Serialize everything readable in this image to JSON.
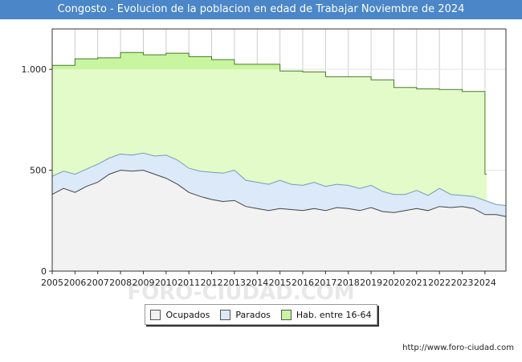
{
  "page": {
    "title": "Congosto - Evolucion de la poblacion en edad de Trabajar Noviembre de 2024",
    "footer_url": "http://www.foro-ciudad.com",
    "watermark": "FORO-CIUDAD.COM"
  },
  "colors": {
    "title_bg": "#4a86c8",
    "ocupados_fill": "#f2f2f2",
    "parados_fill": "#dbe9f9",
    "hab_fill": "#e2fbc8",
    "hab_band": "#c8f5a0",
    "line": "#444444"
  },
  "legend": {
    "ocupados": "Ocupados",
    "parados": "Parados",
    "hab": "Hab. entre 16-64"
  },
  "chart_data": {
    "type": "area",
    "title": "Congosto - Evolucion de la poblacion en edad de Trabajar Noviembre de 2024",
    "x_ticks": [
      "2005",
      "2006",
      "2007",
      "2008",
      "2009",
      "2010",
      "2011",
      "2012",
      "2013",
      "2014",
      "2015",
      "2016",
      "2017",
      "2018",
      "2019",
      "2020",
      "2021",
      "2022",
      "2023",
      "2024"
    ],
    "y_ticks": [
      0,
      500,
      1000
    ],
    "y_tick_labels": [
      "0",
      "500",
      "1.000"
    ],
    "ylim": [
      0,
      1200
    ],
    "xlim": [
      2005,
      2024.92
    ],
    "grid": true,
    "series": [
      {
        "name": "Hab. entre 16-64",
        "type": "step",
        "x": [
          2005,
          2006,
          2007,
          2008,
          2009,
          2010,
          2011,
          2012,
          2013,
          2014,
          2015,
          2016,
          2017,
          2018,
          2019,
          2020,
          2021,
          2022,
          2023,
          2024
        ],
        "values": [
          1020,
          1052,
          1057,
          1083,
          1072,
          1080,
          1063,
          1048,
          1025,
          1025,
          992,
          987,
          963,
          963,
          948,
          910,
          903,
          900,
          890,
          480
        ]
      },
      {
        "name": "Parados",
        "type": "area",
        "x": [
          2005,
          2005.5,
          2006,
          2006.5,
          2007,
          2007.5,
          2008,
          2008.5,
          2009,
          2009.5,
          2010,
          2010.5,
          2011,
          2011.5,
          2012,
          2012.5,
          2013,
          2013.5,
          2014,
          2014.5,
          2015,
          2015.5,
          2016,
          2016.5,
          2017,
          2017.5,
          2018,
          2018.5,
          2019,
          2019.5,
          2020,
          2020.5,
          2021,
          2021.5,
          2022,
          2022.5,
          2023,
          2023.5,
          2024,
          2024.5,
          2024.92
        ],
        "values": [
          470,
          495,
          480,
          505,
          530,
          560,
          580,
          575,
          585,
          570,
          575,
          550,
          510,
          495,
          490,
          485,
          500,
          450,
          440,
          430,
          450,
          430,
          425,
          440,
          420,
          430,
          425,
          410,
          425,
          395,
          380,
          380,
          400,
          375,
          410,
          380,
          375,
          370,
          350,
          330,
          325
        ]
      },
      {
        "name": "Ocupados",
        "type": "area",
        "x": [
          2005,
          2005.5,
          2006,
          2006.5,
          2007,
          2007.5,
          2008,
          2008.5,
          2009,
          2009.5,
          2010,
          2010.5,
          2011,
          2011.5,
          2012,
          2012.5,
          2013,
          2013.5,
          2014,
          2014.5,
          2015,
          2015.5,
          2016,
          2016.5,
          2017,
          2017.5,
          2018,
          2018.5,
          2019,
          2019.5,
          2020,
          2020.5,
          2021,
          2021.5,
          2022,
          2022.5,
          2023,
          2023.5,
          2024,
          2024.5,
          2024.92
        ],
        "values": [
          380,
          410,
          390,
          420,
          440,
          480,
          500,
          495,
          500,
          480,
          460,
          430,
          390,
          370,
          355,
          345,
          350,
          320,
          310,
          300,
          310,
          305,
          300,
          310,
          300,
          315,
          310,
          300,
          315,
          295,
          290,
          300,
          310,
          300,
          320,
          315,
          320,
          310,
          280,
          280,
          270
        ]
      }
    ]
  }
}
